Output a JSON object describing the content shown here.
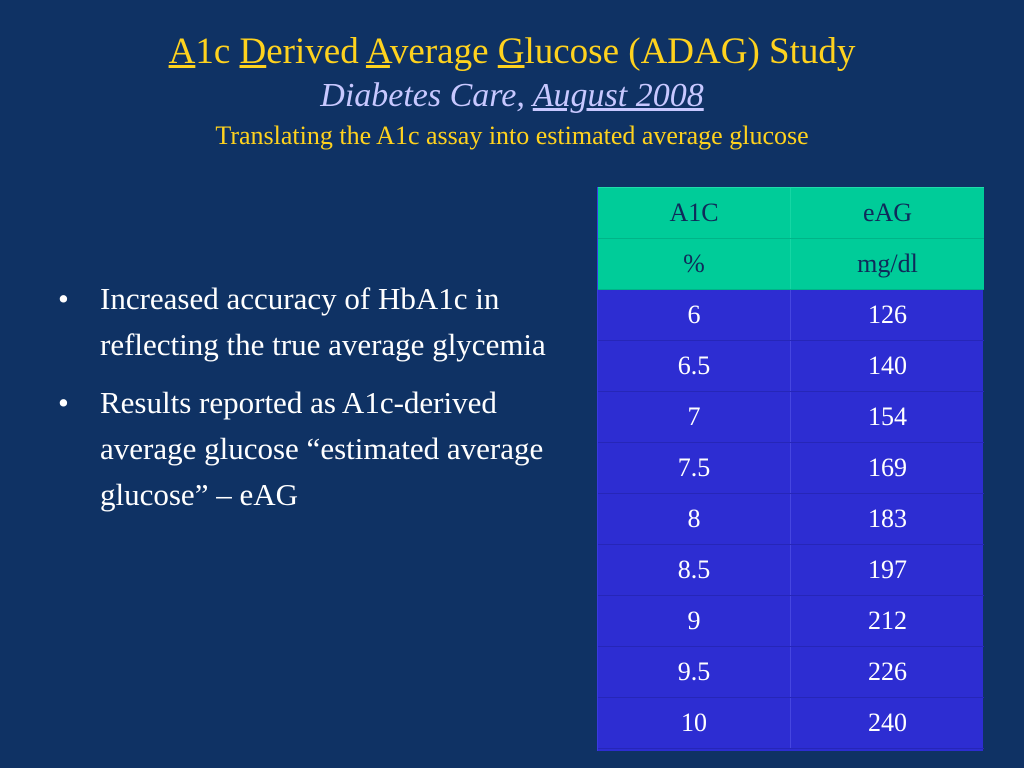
{
  "title": {
    "w1_initial": "A",
    "w1_rest": "1c",
    "w2_initial": "D",
    "w2_rest": "erived",
    "w3_initial": "A",
    "w3_rest": "verage",
    "w4_initial": "G",
    "w4_rest": "lucose (ADAG) Study"
  },
  "journal": {
    "name": "Diabetes Care,",
    "date": "August 2008"
  },
  "subtitle": "Translating the A1c assay into estimated average glucose",
  "bullets": [
    "Increased accuracy of HbA1c in reflecting the true average glycemia",
    "Results reported as A1c-derived average glucose “estimated average glucose” – eAG"
  ],
  "bullet_symbol": "•",
  "table": {
    "header": [
      "A1C",
      "eAG"
    ],
    "units": [
      "%",
      "mg/dl"
    ],
    "rows": [
      [
        "6",
        "126"
      ],
      [
        "6.5",
        "140"
      ],
      [
        "7",
        "154"
      ],
      [
        "7.5",
        "169"
      ],
      [
        "8",
        "183"
      ],
      [
        "8.5",
        "197"
      ],
      [
        "9",
        "212"
      ],
      [
        "9.5",
        "226"
      ],
      [
        "10",
        "240"
      ]
    ]
  },
  "colors": {
    "background": "#0f3264",
    "title": "#ffd21e",
    "journal": "#c8c8ff",
    "table_header": "#00cc99",
    "table_body": "#2d2dd2"
  }
}
